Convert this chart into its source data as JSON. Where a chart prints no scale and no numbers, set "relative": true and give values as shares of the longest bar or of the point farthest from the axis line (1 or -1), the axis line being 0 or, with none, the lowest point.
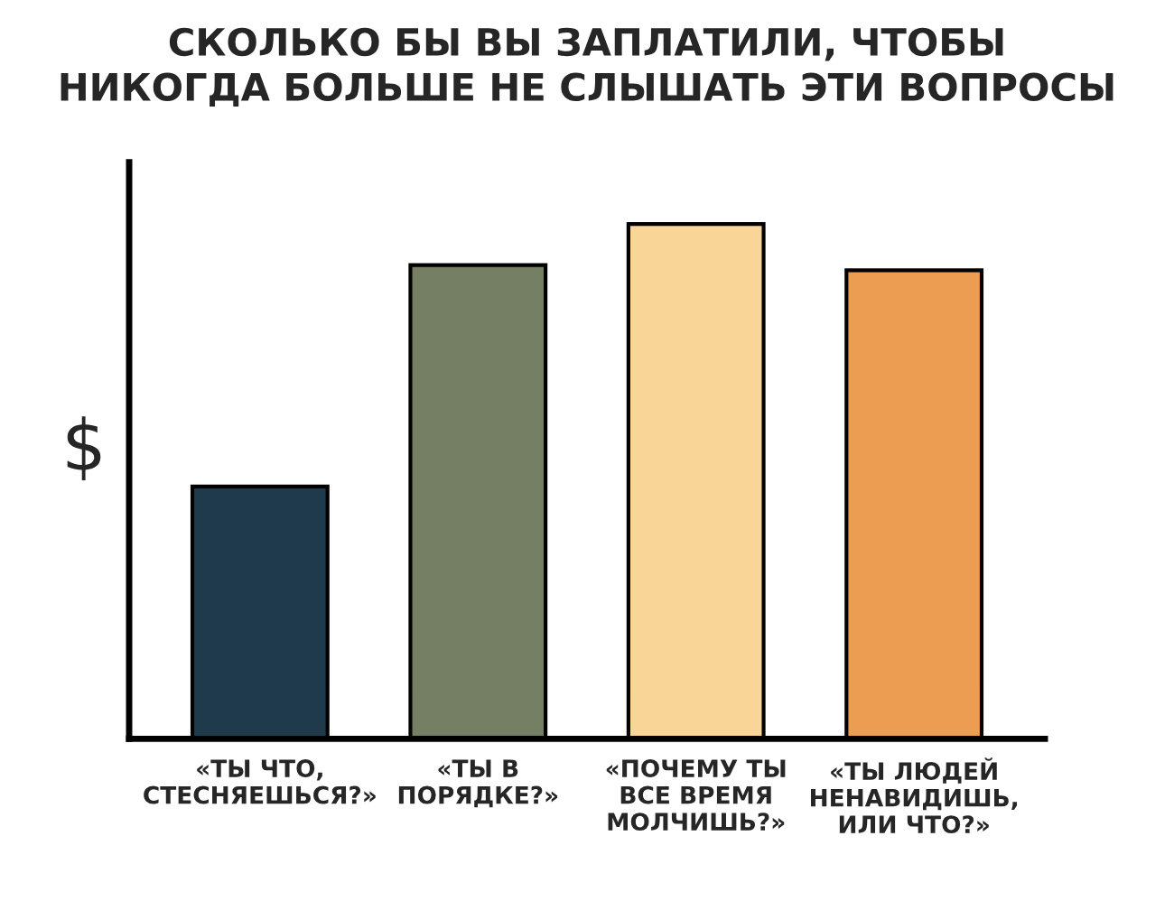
{
  "chart_data": {
    "type": "bar",
    "title": "СКОЛЬКО БЫ ВЫ ЗАПЛАТИЛИ, ЧТОБЫ\nНИКОГДА БОЛЬШЕ НЕ СЛЫШАТЬ ЭТИ ВОПРОСЫ",
    "ylabel": "$",
    "categories": [
      "«ТЫ ЧТО,\nСТЕСНЯЕШЬСЯ?»",
      "«ТЫ В\nПОРЯДКЕ?»",
      "«ПОЧЕМУ ТЫ\nВСЕ ВРЕМЯ\nМОЛЧИШЬ?»",
      "«ТЫ ЛЮДЕЙ\nНЕНАВИДИШЬ,\nИЛИ ЧТО?»"
    ],
    "values": [
      0.49,
      0.92,
      1,
      0.91
    ],
    "colors": [
      "#1f3a4a",
      "#757f63",
      "#f9d597",
      "#ec9d52"
    ],
    "relative": true
  }
}
